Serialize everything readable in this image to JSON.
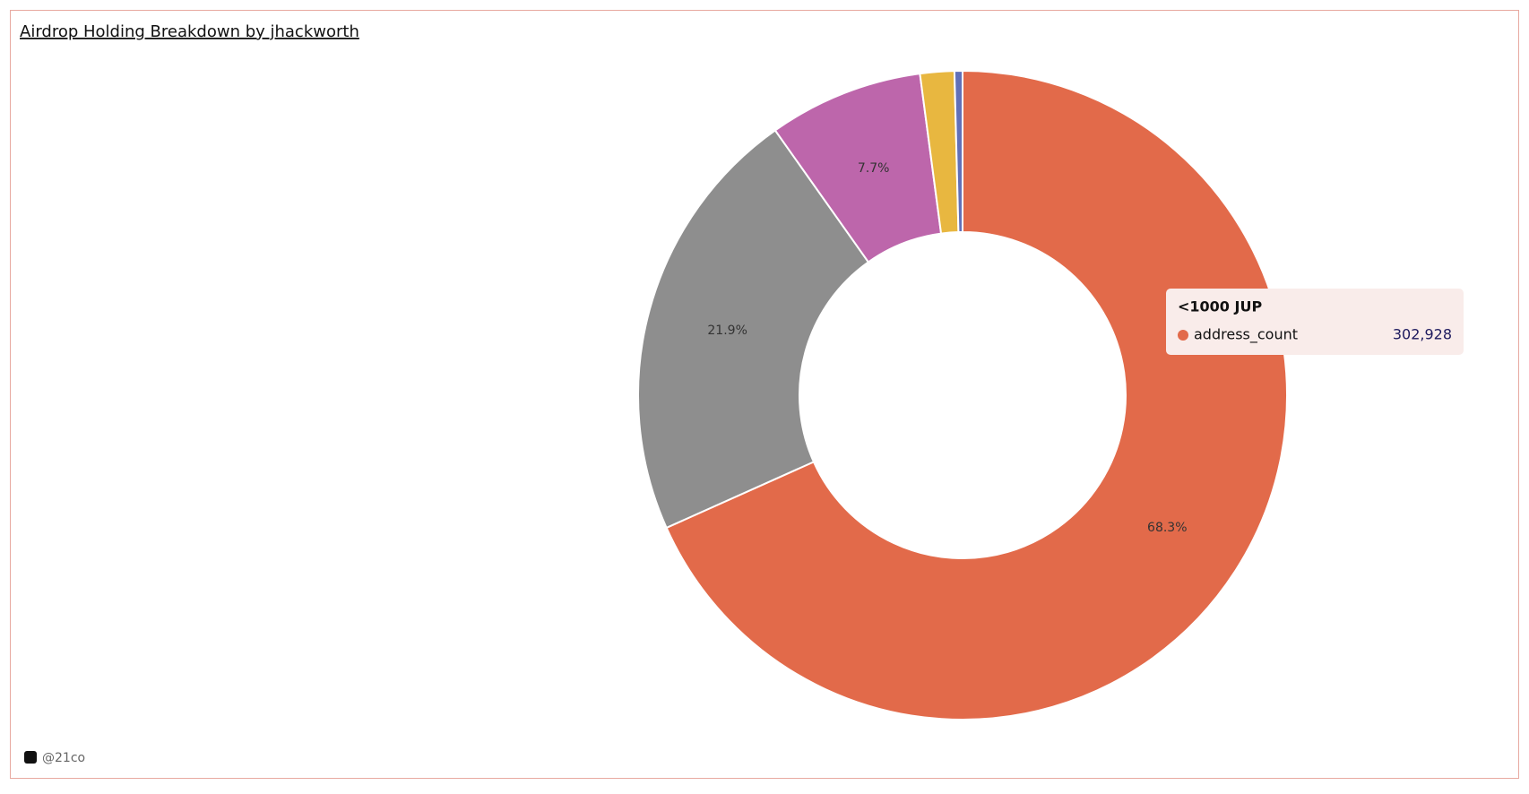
{
  "chart_data": {
    "type": "pie",
    "title": "Airdrop Holding Breakdown by jhackworth",
    "categories": [
      "<1000 JUP",
      null,
      null,
      null,
      null
    ],
    "values": [
      68.3,
      21.9,
      7.7,
      1.7,
      0.4
    ],
    "value_labels": [
      "68.3%",
      "21.9%",
      "7.7%",
      null,
      null
    ],
    "colors": [
      "#e26a4a",
      "#8e8e8e",
      "#bd66ab",
      "#e8b740",
      "#6170b8"
    ],
    "donut": true
  },
  "tooltip": {
    "title": "<1000 JUP",
    "name": "address_count",
    "value": "302,928"
  },
  "footer": {
    "text": "@21co"
  }
}
